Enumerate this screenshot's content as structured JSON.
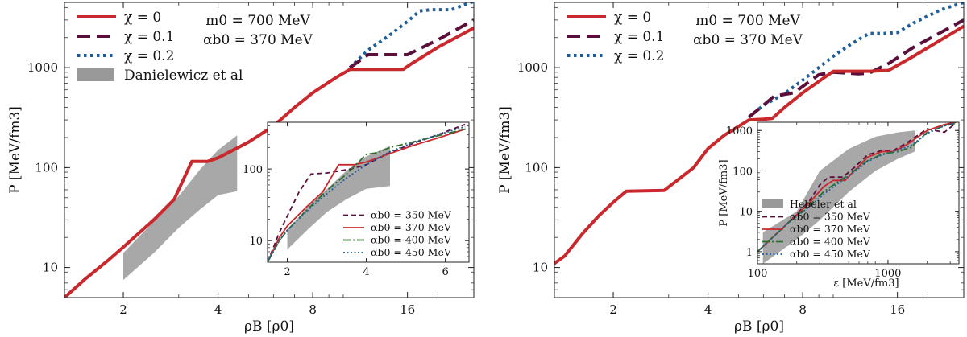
{
  "colors": {
    "chi0": "#c9282d",
    "chi01": "#5a0f3a",
    "chi02": "#1f5f9a",
    "band": "#999999",
    "inset350": "#5a0f3a",
    "inset370": "#c9282d",
    "inset400": "#2f6e2f",
    "inset450": "#1f5f9a"
  },
  "chart_data": [
    {
      "type": "line",
      "xscale": "log",
      "yscale": "log",
      "xlabel": "ρB [ρ0]",
      "ylabel": "P [MeV/fm3]",
      "xlim": [
        1.3,
        26
      ],
      "ylim": [
        5,
        4500
      ],
      "xticks": [
        2,
        4,
        8,
        16
      ],
      "yticks": [
        10,
        100,
        1000
      ],
      "annotations": [
        "m0 = 700 MeV",
        "αb0 = 370 MeV"
      ],
      "legend": [
        {
          "label": "χ = 0",
          "series": "chi0"
        },
        {
          "label": "χ = 0.1",
          "series": "chi01"
        },
        {
          "label": "χ = 0.2",
          "series": "chi02"
        },
        {
          "label": "Danielewicz et al",
          "series": "band"
        }
      ],
      "band": {
        "name": "Danielewicz et al",
        "x": [
          2.0,
          2.5,
          3.0,
          3.5,
          4.0,
          4.6
        ],
        "lower": [
          7.5,
          14,
          25,
          38,
          53,
          58
        ],
        "upper": [
          14,
          29,
          52,
          95,
          150,
          210
        ]
      },
      "series": [
        {
          "name": "chi0",
          "label": "χ = 0",
          "x": [
            1.3,
            1.5,
            1.8,
            2.0,
            2.5,
            2.9,
            3.3,
            3.7,
            4.0,
            5.0,
            6.0,
            7.0,
            8.0,
            9.5,
            10.5,
            12,
            14,
            15.5,
            16.5,
            20,
            26
          ],
          "y": [
            5,
            7.5,
            12,
            16,
            30,
            48,
            115,
            115,
            125,
            180,
            260,
            400,
            560,
            800,
            960,
            960,
            960,
            960,
            1100,
            1600,
            2500
          ]
        },
        {
          "name": "chi01",
          "label": "χ = 0.1",
          "x": [
            10.5,
            12,
            14,
            16,
            20,
            26
          ],
          "y": [
            1000,
            1350,
            1350,
            1350,
            1900,
            3000
          ]
        },
        {
          "name": "chi02",
          "label": "χ = 0.2",
          "x": [
            10.5,
            12,
            14,
            16,
            17.5,
            19,
            22,
            26
          ],
          "y": [
            1000,
            1500,
            2100,
            2900,
            3700,
            3800,
            3800,
            4600
          ]
        }
      ],
      "inset": {
        "xscale": "linear",
        "yscale": "log",
        "xlim": [
          1.5,
          6.6
        ],
        "ylim": [
          5,
          450
        ],
        "xticks": [
          2,
          4,
          6
        ],
        "yticks": [
          10,
          100
        ],
        "band": {
          "x": [
            2.0,
            2.5,
            3.0,
            3.5,
            4.0,
            4.6
          ],
          "lower": [
            7.5,
            14,
            25,
            38,
            53,
            58
          ],
          "upper": [
            14,
            29,
            52,
            95,
            150,
            210
          ]
        },
        "series": [
          {
            "name": "inset350",
            "label": "αb0 = 350 MeV",
            "x": [
              1.5,
              1.8,
              2.0,
              2.3,
              2.6,
              3.0,
              3.6,
              4.0,
              4.6,
              5.2,
              5.8,
              6.5
            ],
            "y": [
              5,
              13,
              22,
              48,
              85,
              88,
              100,
              115,
              170,
              230,
              300,
              420
            ]
          },
          {
            "name": "inset370",
            "label": "αb0 = 370 MeV",
            "x": [
              1.5,
              1.8,
              2.0,
              2.5,
              2.9,
              3.3,
              3.7,
              4.0,
              4.6,
              5.2,
              5.8,
              6.5
            ],
            "y": [
              5,
              11,
              16,
              30,
              48,
              115,
              115,
              125,
              165,
              215,
              270,
              360
            ]
          },
          {
            "name": "inset400",
            "label": "αb0 = 400 MeV",
            "x": [
              1.5,
              1.8,
              2.0,
              2.5,
              3.0,
              3.5,
              4.0,
              4.3,
              4.6,
              5.2,
              5.8,
              6.5
            ],
            "y": [
              5,
              10,
              14,
              27,
              50,
              85,
              160,
              170,
              200,
              240,
              290,
              360
            ]
          },
          {
            "name": "inset450",
            "label": "αb0 = 450 MeV",
            "x": [
              1.5,
              1.8,
              2.0,
              2.5,
              3.0,
              3.5,
              4.0,
              4.6,
              5.2,
              5.8,
              6.5
            ],
            "y": [
              5,
              10,
              14,
              26,
              45,
              75,
              115,
              175,
              235,
              300,
              390
            ]
          }
        ],
        "legend": [
          "αb0 = 350 MeV",
          "αb0 = 370 MeV",
          "αb0 = 400 MeV",
          "αb0 = 450 MeV"
        ]
      }
    },
    {
      "type": "line",
      "xscale": "log",
      "yscale": "log",
      "xlabel": "ρB [ρ0]",
      "ylabel": "P [MeV/fm3]",
      "xlim": [
        1.3,
        26
      ],
      "ylim": [
        5,
        4500
      ],
      "xticks": [
        2,
        4,
        8,
        16
      ],
      "yticks": [
        10,
        100,
        1000
      ],
      "annotations": [
        "m0 = 700 MeV",
        "αb0 = 370 MeV"
      ],
      "legend": [
        {
          "label": "χ = 0",
          "series": "chi0"
        },
        {
          "label": "χ = 0.1",
          "series": "chi01"
        },
        {
          "label": "χ = 0.2",
          "series": "chi02"
        }
      ],
      "series": [
        {
          "name": "chi0",
          "label": "χ = 0",
          "x": [
            1.3,
            1.4,
            1.6,
            1.8,
            2.0,
            2.2,
            2.9,
            3.2,
            3.6,
            4.0,
            4.5,
            5.4,
            6.0,
            6.4,
            7.0,
            8.0,
            10,
            13,
            15,
            18,
            26
          ],
          "y": [
            11,
            13,
            22,
            33,
            45,
            58,
            59,
            75,
            100,
            155,
            210,
            300,
            305,
            310,
            400,
            560,
            920,
            920,
            940,
            1300,
            2600
          ]
        },
        {
          "name": "chi01",
          "label": "χ = 0.1",
          "x": [
            5.4,
            6.0,
            6.5,
            7.5,
            9.0,
            10,
            12,
            13,
            15,
            18,
            26
          ],
          "y": [
            320,
            420,
            520,
            560,
            850,
            900,
            870,
            880,
            1100,
            1600,
            3000
          ]
        },
        {
          "name": "chi02",
          "label": "χ = 0.2",
          "x": [
            5.4,
            6.0,
            7.0,
            8.0,
            9.0,
            10,
            11,
            12,
            13,
            14.5,
            16,
            18,
            22,
            26
          ],
          "y": [
            320,
            420,
            550,
            750,
            1000,
            1300,
            1600,
            1900,
            2200,
            2200,
            2250,
            2800,
            3800,
            4500
          ]
        }
      ],
      "inset": {
        "xscale": "log",
        "yscale": "log",
        "xlabel": "ε [MeV/fm3]",
        "ylabel": "P [MeV/fm3]",
        "xlim": [
          100,
          3500
        ],
        "ylim": [
          0.5,
          1600
        ],
        "xticks": [
          100,
          1000
        ],
        "yticks": [
          1,
          10,
          100,
          1000
        ],
        "band_label": "Hebeler et al",
        "band": {
          "x": [
            110,
            200,
            300,
            500,
            800,
            1200,
            1600
          ],
          "lower": [
            0.5,
            2,
            6,
            30,
            100,
            200,
            300
          ],
          "upper": [
            3,
            10,
            100,
            350,
            700,
            900,
            1000
          ]
        },
        "series": [
          {
            "name": "inset350",
            "label": "αb0 = 350 MeV",
            "x": [
              100,
              170,
              250,
              300,
              350,
              450,
              550,
              700,
              900,
              1100,
              1400,
              2000,
              2700,
              3300
            ],
            "y": [
              1,
              5,
              18,
              45,
              70,
              70,
              120,
              250,
              320,
              320,
              500,
              1100,
              900,
              1500
            ]
          },
          {
            "name": "inset370",
            "label": "αb0 = 370 MeV",
            "x": [
              100,
              170,
              250,
              320,
              380,
              470,
              550,
              700,
              900,
              1100,
              1400,
              2000,
              2700,
              3300
            ],
            "y": [
              1,
              5,
              16,
              40,
              58,
              58,
              100,
              220,
              300,
              300,
              450,
              1000,
              1400,
              1600
            ]
          },
          {
            "name": "inset400",
            "label": "αb0 = 400 MeV",
            "x": [
              100,
              170,
              250,
              320,
              400,
              500,
              700,
              900,
              1200,
              1500,
              2000,
              2700,
              3300
            ],
            "y": [
              1,
              5,
              14,
              30,
              50,
              80,
              180,
              260,
              300,
              380,
              900,
              1300,
              1500
            ]
          },
          {
            "name": "inset450",
            "label": "αb0 = 450 MeV",
            "x": [
              100,
              170,
              250,
              320,
              400,
              500,
              700,
              900,
              1200,
              1500,
              2000,
              2700,
              3300
            ],
            "y": [
              1,
              5,
              13,
              26,
              45,
              75,
              170,
              250,
              330,
              420,
              850,
              1300,
              1500
            ]
          }
        ],
        "legend": [
          "Hebeler et al",
          "αb0 = 350 MeV",
          "αb0 = 370 MeV",
          "αb0 = 400 MeV",
          "αb0 = 450 MeV"
        ]
      }
    }
  ]
}
